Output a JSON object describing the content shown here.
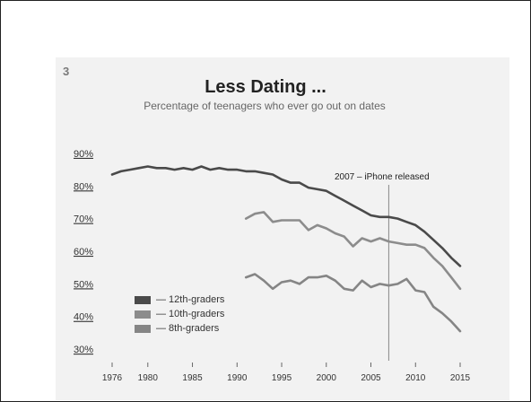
{
  "page": {
    "number": "3"
  },
  "colors": {
    "twelfth": "#4a4a4a",
    "tenth": "#8c8c8c",
    "eighth": "#858585",
    "frame": "#222222",
    "panel": "#f2f2f2"
  },
  "chart_data": {
    "type": "line",
    "title": "Less Dating ...",
    "subtitle": "Percentage of teenagers who ever go out on dates",
    "xlabel": "",
    "ylabel": "",
    "xlim": [
      1974,
      2016
    ],
    "ylim": [
      27,
      93
    ],
    "yticks": [
      "90%",
      "80%",
      "70%",
      "60%",
      "50%",
      "40%",
      "30%"
    ],
    "ytick_values": [
      90,
      80,
      70,
      60,
      50,
      40,
      30
    ],
    "xticks": [
      "1976",
      "1980",
      "1985",
      "1990",
      "1995",
      "2000",
      "2005",
      "2010",
      "2015"
    ],
    "xtick_values": [
      1976,
      1980,
      1985,
      1990,
      1995,
      2000,
      2005,
      2010,
      2015
    ],
    "grid": false,
    "legend_position": "bottom-left",
    "legend": [
      "— 12th-graders",
      "— 10th-graders",
      "— 8th-graders"
    ],
    "annotation": {
      "text": "2007 – iPhone released",
      "x": 2007
    },
    "series": [
      {
        "name": "— 12th-graders",
        "x": [
          1976,
          1977,
          1978,
          1979,
          1980,
          1981,
          1982,
          1983,
          1984,
          1985,
          1986,
          1987,
          1988,
          1989,
          1990,
          1991,
          1992,
          1993,
          1994,
          1995,
          1996,
          1997,
          1998,
          1999,
          2000,
          2001,
          2002,
          2003,
          2004,
          2005,
          2006,
          2007,
          2008,
          2009,
          2010,
          2011,
          2012,
          2013,
          2014,
          2015
        ],
        "values": [
          83.5,
          84.5,
          85,
          85.5,
          86,
          85.5,
          85.5,
          85,
          85.5,
          85,
          86,
          85,
          85.5,
          85,
          85,
          84.5,
          84.5,
          84,
          83.5,
          82,
          81,
          81,
          79.5,
          79,
          78.5,
          77,
          75.5,
          74,
          72.5,
          71,
          70.5,
          70.5,
          70,
          69,
          68,
          66,
          63.5,
          61,
          58,
          55.5
        ]
      },
      {
        "name": "— 10th-graders",
        "x": [
          1991,
          1992,
          1993,
          1994,
          1995,
          1996,
          1997,
          1998,
          1999,
          2000,
          2001,
          2002,
          2003,
          2004,
          2005,
          2006,
          2007,
          2008,
          2009,
          2010,
          2011,
          2012,
          2013,
          2014,
          2015
        ],
        "values": [
          70,
          71.5,
          72,
          69,
          69.5,
          69.5,
          69.5,
          66.5,
          68,
          67,
          65.5,
          64.5,
          61.5,
          64,
          63,
          64,
          63,
          62.5,
          62,
          62,
          61,
          58,
          55.5,
          52,
          48.5
        ]
      },
      {
        "name": "— 8th-graders",
        "x": [
          1991,
          1992,
          1993,
          1994,
          1995,
          1996,
          1997,
          1998,
          1999,
          2000,
          2001,
          2002,
          2003,
          2004,
          2005,
          2006,
          2007,
          2008,
          2009,
          2010,
          2011,
          2012,
          2013,
          2014,
          2015
        ],
        "values": [
          52,
          53,
          51,
          48.5,
          50.5,
          51,
          50,
          52,
          52,
          52.5,
          51,
          48.5,
          48,
          51,
          49,
          50,
          49.5,
          50,
          51.5,
          48,
          47.5,
          43,
          41,
          38.5,
          35.5
        ]
      }
    ]
  }
}
